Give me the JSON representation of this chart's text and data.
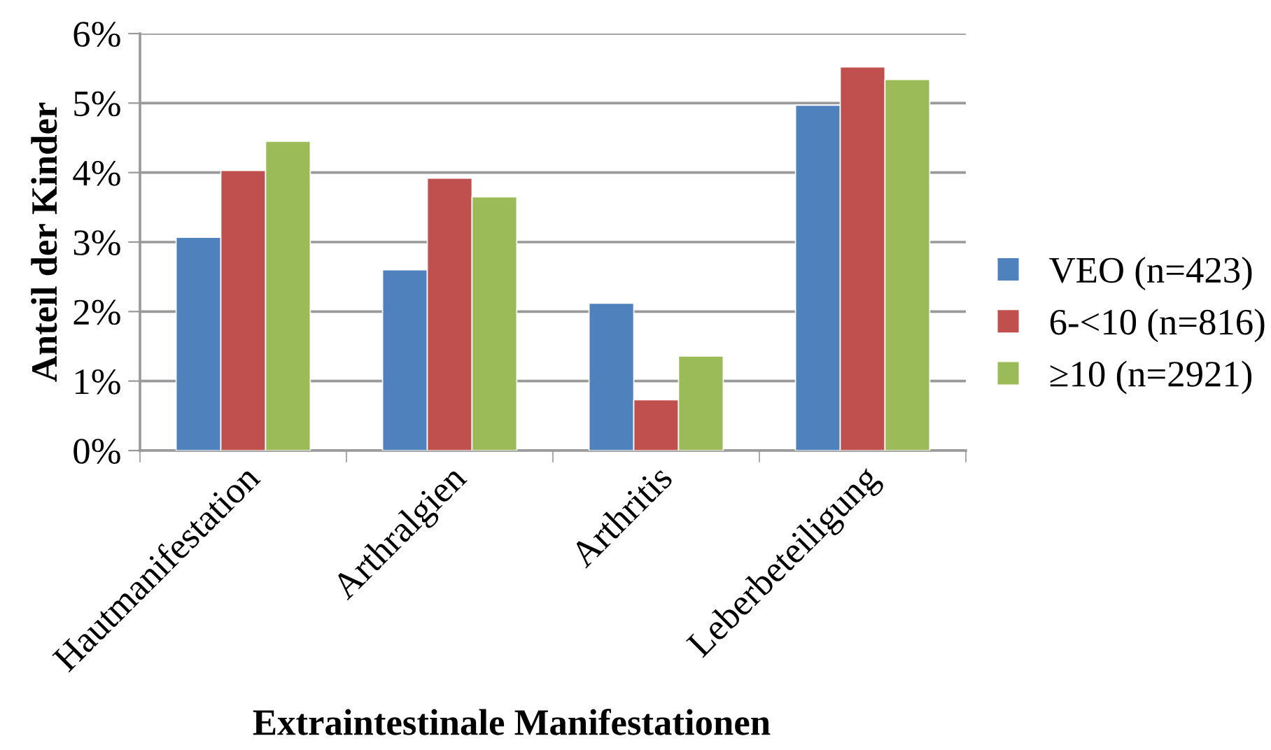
{
  "chart_data": {
    "type": "bar",
    "xlabel": "Extraintestinale Manifestationen",
    "ylabel": "Anteil der Kinder",
    "categories": [
      "Hautmanifestation",
      "Arthralgien",
      "Arthritis",
      "Leberbeteiligung"
    ],
    "series": [
      {
        "name": "VEO (n=423)",
        "color": "#4f81bd",
        "values": [
          3.07,
          2.6,
          2.12,
          4.97
        ]
      },
      {
        "name": "6-<10 (n=816)",
        "color": "#c0504d",
        "values": [
          4.03,
          3.92,
          0.73,
          5.52
        ]
      },
      {
        "name": "≥10 (n=2921)",
        "color": "#9bbb59",
        "values": [
          4.45,
          3.65,
          1.36,
          5.34
        ]
      }
    ],
    "ylim": [
      0,
      6
    ],
    "yticks": [
      {
        "value": 0,
        "label": "0%"
      },
      {
        "value": 1,
        "label": "1%"
      },
      {
        "value": 2,
        "label": "2%"
      },
      {
        "value": 3,
        "label": "3%"
      },
      {
        "value": 4,
        "label": "4%"
      },
      {
        "value": 5,
        "label": "5%"
      },
      {
        "value": 6,
        "label": "6%"
      }
    ],
    "grid": "y",
    "legend": "right"
  }
}
